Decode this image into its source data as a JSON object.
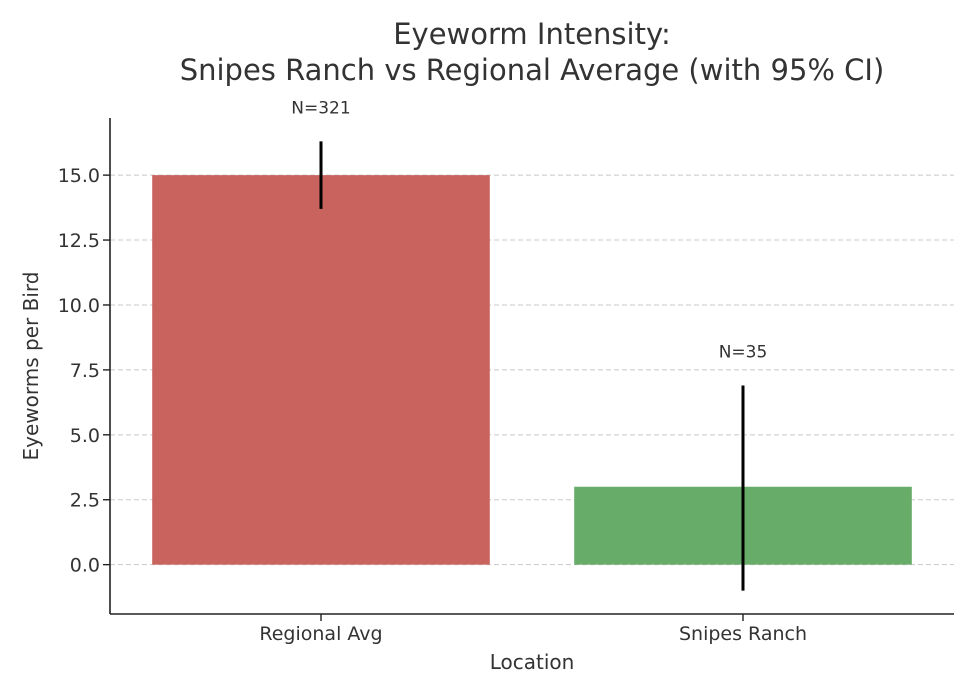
{
  "chart_data": {
    "type": "bar",
    "title_lines": [
      "Eyeworm Intensity:",
      "Snipes Ranch vs Regional Average (with 95% CI)"
    ],
    "xlabel": "Location",
    "ylabel": "Eyeworms per Bird",
    "categories": [
      "Regional Avg",
      "Snipes Ranch"
    ],
    "values": [
      15.0,
      3.0
    ],
    "ci_lower": [
      13.7,
      -1.0
    ],
    "ci_upper": [
      16.3,
      6.9
    ],
    "sample_labels": [
      "N=321",
      "N=35"
    ],
    "colors": [
      "#c8635d",
      "#67ac68"
    ],
    "yticks": [
      0.0,
      2.5,
      5.0,
      7.5,
      10.0,
      12.5,
      15.0
    ],
    "ytick_labels": [
      "0.0",
      "2.5",
      "5.0",
      "7.5",
      "10.0",
      "12.5",
      "15.0"
    ],
    "ylim": [
      -1.9,
      17.2
    ],
    "grid": "y-dashed",
    "legend": "none"
  }
}
